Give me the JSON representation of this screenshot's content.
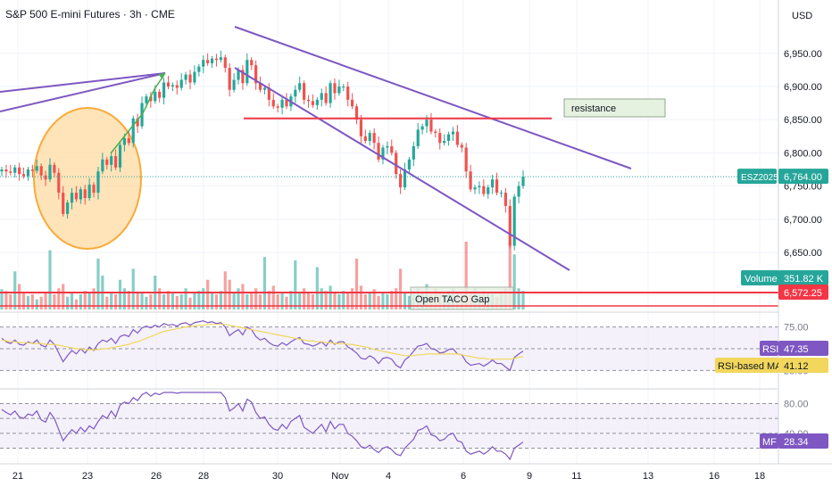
{
  "header": {
    "title": "S&P 500 E-mini Futures · 3h · CME",
    "currency": "USD"
  },
  "colors": {
    "up": "#26a69a",
    "down": "#ef5350",
    "trendline": "#7e57c2",
    "arrow": "#4caf50",
    "resistance_line": "#f23645",
    "circle_fill": "#ffe0b2",
    "circle_stroke": "#f7a325",
    "rsi_ma": "#f2d75c"
  },
  "chart_data": [
    {
      "type": "candlestick",
      "symbol": "ESZ2025",
      "y_axis_ticks": [
        6950,
        6900,
        6850,
        6800,
        6750,
        6700,
        6650
      ],
      "y_axis_tick_labels": [
        "6,950.00",
        "6,900.00",
        "6,850.00",
        "6,800.00",
        "6,750.00",
        "6,700.00",
        "6,650.00"
      ],
      "ylim": [
        6560,
        6990
      ],
      "x_tick_labels": [
        "21",
        "23",
        "26",
        "28",
        "30",
        "Nov",
        "4",
        "6",
        "9",
        "11",
        "13",
        "16",
        "18"
      ],
      "last_price": 6764,
      "last_price_label": "6,764.00",
      "symbol_label": "ESZ2025",
      "resistance_level": 6852,
      "gap_level": 6572.25,
      "gap_label": "6,572.25",
      "annotations": {
        "resistance_text": "resistance",
        "gap_text": "Open TACO Gap"
      },
      "closes": [
        6775,
        6772,
        6770,
        6778,
        6768,
        6765,
        6775,
        6773,
        6780,
        6766,
        6760,
        6782,
        6770,
        6740,
        6708,
        6725,
        6740,
        6730,
        6745,
        6732,
        6752,
        6740,
        6772,
        6790,
        6782,
        6795,
        6778,
        6812,
        6822,
        6815,
        6852,
        6840,
        6875,
        6885,
        6878,
        6892,
        6883,
        6906,
        6900,
        6902,
        6898,
        6910,
        6918,
        6906,
        6922,
        6930,
        6940,
        6935,
        6942,
        6940,
        6944,
        6928,
        6895,
        6910,
        6925,
        6905,
        6940,
        6932,
        6905,
        6895,
        6898,
        6880,
        6870,
        6868,
        6880,
        6870,
        6885,
        6895,
        6905,
        6880,
        6878,
        6872,
        6880,
        6890,
        6875,
        6905,
        6890,
        6900,
        6900,
        6880,
        6870,
        6850,
        6825,
        6818,
        6830,
        6815,
        6790,
        6808,
        6810,
        6800,
        6768,
        6748,
        6775,
        6790,
        6810,
        6835,
        6840,
        6850,
        6832,
        6830,
        6815,
        6818,
        6828,
        6832,
        6812,
        6808,
        6772,
        6745,
        6748,
        6750,
        6738,
        6748,
        6760,
        6740,
        6740,
        6720,
        6660,
        6734,
        6750,
        6764
      ]
    },
    {
      "type": "bar",
      "name": "Volume",
      "label": "Volume",
      "last_value_label": "351.82 K",
      "values": [
        24,
        22,
        18,
        45,
        30,
        20,
        16,
        18,
        12,
        15,
        20,
        70,
        18,
        25,
        30,
        15,
        20,
        12,
        18,
        22,
        20,
        25,
        60,
        40,
        15,
        20,
        18,
        35,
        25,
        22,
        48,
        20,
        20,
        15,
        18,
        40,
        25,
        18,
        22,
        20,
        16,
        18,
        25,
        14,
        20,
        22,
        25,
        35,
        20,
        18,
        22,
        45,
        35,
        20,
        25,
        30,
        18,
        20,
        25,
        18,
        62,
        22,
        28,
        18,
        20,
        15,
        22,
        58,
        20,
        25,
        20,
        18,
        50,
        25,
        22,
        28,
        20,
        18,
        22,
        20,
        25,
        60,
        28,
        18,
        20,
        24,
        16,
        20,
        18,
        22,
        25,
        48,
        20,
        16,
        22,
        25,
        20,
        30,
        18,
        25,
        20,
        18,
        22,
        25,
        20,
        18,
        80,
        20,
        25,
        18,
        22,
        20,
        18,
        15,
        22,
        25,
        80,
        65,
        25,
        22
      ]
    },
    {
      "type": "line",
      "name": "RSI",
      "label": "RSI",
      "last_value_label": "47.35",
      "ma_label": "RSI-based MA",
      "ma_last_value_label": "41.12",
      "y_axis_tick_labels": [
        "75.00",
        "25.00"
      ],
      "levels": [
        75,
        50,
        25
      ],
      "values": [
        62,
        58,
        56,
        60,
        55,
        54,
        58,
        56,
        60,
        54,
        52,
        60,
        55,
        45,
        35,
        42,
        48,
        44,
        50,
        45,
        52,
        48,
        56,
        60,
        58,
        62,
        56,
        64,
        66,
        64,
        72,
        68,
        74,
        76,
        74,
        77,
        75,
        79,
        77,
        78,
        76,
        79,
        80,
        77,
        80,
        81,
        82,
        80,
        81,
        79,
        80,
        75,
        65,
        69,
        72,
        66,
        75,
        72,
        64,
        60,
        62,
        57,
        54,
        53,
        57,
        54,
        58,
        61,
        63,
        56,
        55,
        53,
        55,
        58,
        53,
        60,
        55,
        58,
        58,
        52,
        49,
        45,
        39,
        38,
        42,
        39,
        33,
        39,
        40,
        38,
        31,
        28,
        37,
        41,
        47,
        53,
        54,
        56,
        50,
        49,
        45,
        46,
        49,
        50,
        44,
        43,
        35,
        31,
        32,
        33,
        30,
        33,
        37,
        33,
        33,
        29,
        25,
        40,
        44,
        47.35
      ],
      "ma_values": [
        60,
        59,
        58,
        58,
        57,
        57,
        57,
        56,
        56,
        56,
        55,
        55,
        55,
        54,
        53,
        52,
        51,
        50,
        50,
        49,
        49,
        49,
        49,
        50,
        50,
        51,
        52,
        53,
        54,
        55,
        57,
        58,
        60,
        62,
        64,
        66,
        68,
        70,
        71,
        72,
        73,
        74,
        75,
        76,
        76,
        77,
        77,
        78,
        78,
        78,
        78,
        78,
        77,
        76,
        75,
        74,
        73,
        72,
        71,
        70,
        69,
        68,
        67,
        66,
        65,
        64,
        63,
        62,
        61,
        60,
        59,
        59,
        58,
        58,
        57,
        57,
        56,
        56,
        56,
        55,
        55,
        54,
        53,
        52,
        51,
        49,
        48,
        47,
        46,
        45,
        44,
        43,
        42,
        42,
        42,
        43,
        43,
        44,
        44,
        44,
        44,
        44,
        44,
        44,
        44,
        43,
        42,
        41,
        40,
        39,
        39,
        38,
        38,
        38,
        38,
        38,
        38,
        39,
        40,
        41.12
      ]
    },
    {
      "type": "line",
      "name": "MF",
      "label": "MF",
      "last_value_label": "28.34",
      "y_axis_tick_labels": [
        "80.00",
        "40.00"
      ],
      "levels": [
        80,
        60,
        40,
        20
      ],
      "values": [
        72,
        68,
        65,
        70,
        62,
        60,
        66,
        64,
        70,
        58,
        55,
        68,
        60,
        45,
        30,
        38,
        45,
        40,
        48,
        42,
        50,
        46,
        56,
        64,
        60,
        70,
        62,
        78,
        82,
        80,
        88,
        84,
        92,
        95,
        90,
        94,
        92,
        96,
        95,
        96,
        94,
        96,
        97,
        95,
        97,
        98,
        99,
        97,
        98,
        96,
        97,
        88,
        70,
        74,
        80,
        70,
        86,
        82,
        68,
        60,
        62,
        52,
        46,
        44,
        52,
        46,
        56,
        60,
        64,
        48,
        44,
        40,
        46,
        52,
        42,
        56,
        46,
        52,
        52,
        40,
        36,
        30,
        22,
        20,
        24,
        18,
        14,
        20,
        22,
        18,
        12,
        10,
        20,
        26,
        32,
        44,
        46,
        50,
        38,
        36,
        30,
        32,
        38,
        40,
        30,
        28,
        16,
        12,
        14,
        16,
        12,
        16,
        22,
        16,
        16,
        12,
        4,
        20,
        24,
        28.34
      ]
    }
  ]
}
